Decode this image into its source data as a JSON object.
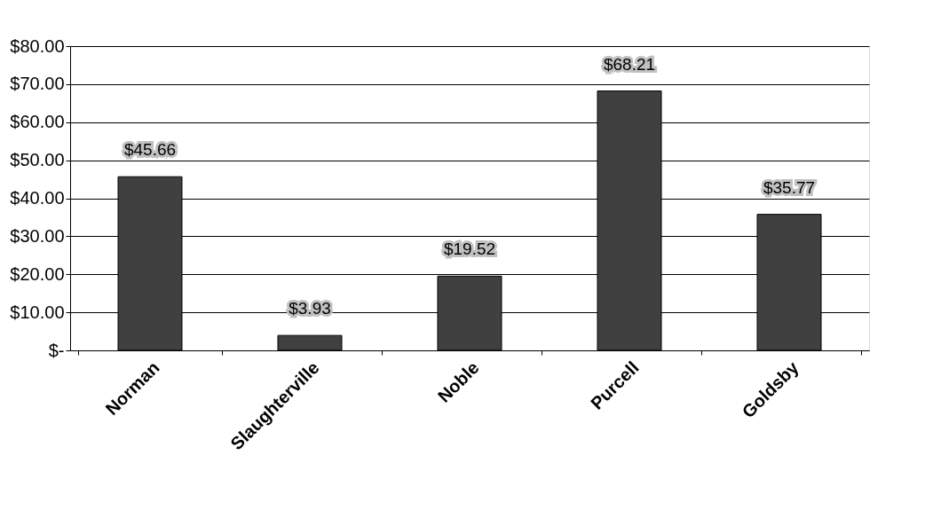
{
  "chart_data": {
    "type": "bar",
    "categories": [
      "Norman",
      "Slaughterville",
      "Noble",
      "Purcell",
      "Goldsby"
    ],
    "values": [
      45.66,
      3.93,
      19.52,
      68.21,
      35.77
    ],
    "value_labels": [
      "$45.66",
      "$3.93",
      "$19.52",
      "$68.21",
      "$35.77"
    ],
    "color": "#404040",
    "ylim": [
      0,
      80
    ],
    "yticks": [
      {
        "value": 0,
        "label": "$-"
      },
      {
        "value": 10,
        "label": "$10.00"
      },
      {
        "value": 20,
        "label": "$20.00"
      },
      {
        "value": 30,
        "label": "$30.00"
      },
      {
        "value": 40,
        "label": "$40.00"
      },
      {
        "value": 50,
        "label": "$50.00"
      },
      {
        "value": 60,
        "label": "$60.00"
      },
      {
        "value": 70,
        "label": "$70.00"
      },
      {
        "value": 80,
        "label": "$80.00"
      }
    ],
    "grid": "y"
  }
}
